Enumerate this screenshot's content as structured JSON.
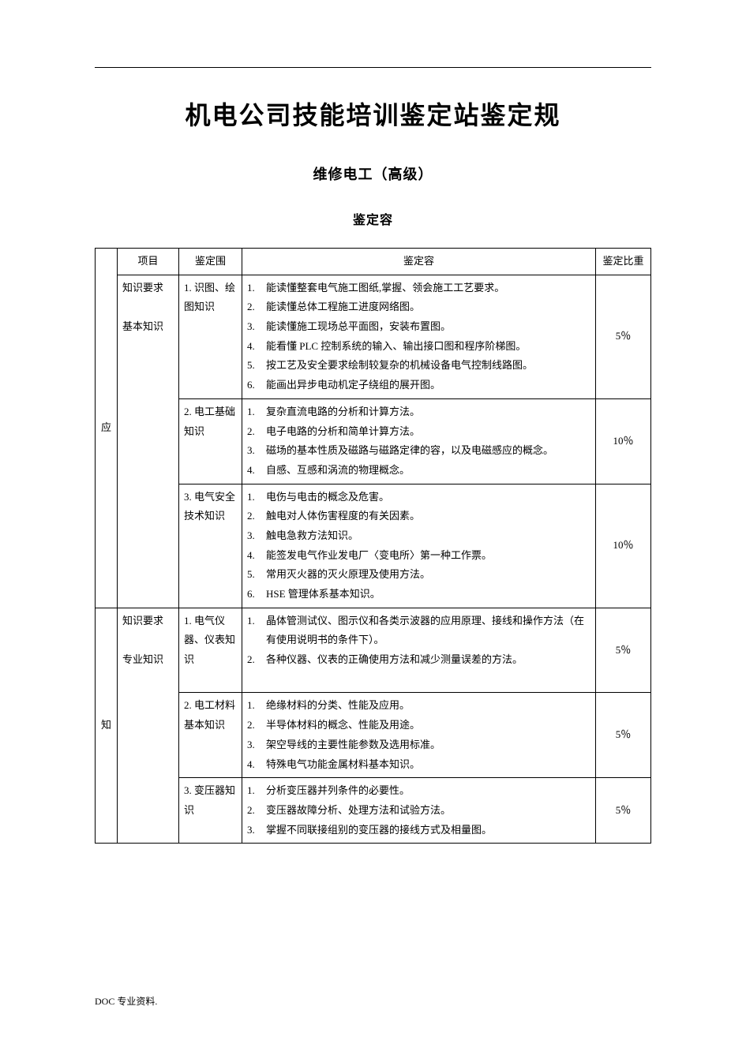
{
  "title": "机电公司技能培训鉴定站鉴定规",
  "subtitle": "维修电工（高级）",
  "section": "鉴定容",
  "footer": "DOC 专业资料.",
  "headers": {
    "side": "",
    "project": "项目",
    "scope": "鉴定围",
    "content": "鉴定容",
    "weight": "鉴定比重"
  },
  "side_labels": {
    "ying": "应",
    "zhi": "知"
  },
  "rows": [
    {
      "project": "知识要求\n\n基本知识",
      "scope": "1. 识图、绘图知识",
      "items": [
        "能读懂整套电气施工图纸,掌握、领会施工工艺要求。",
        "能读懂总体工程施工进度网络图。",
        "能读懂施工现场总平面图，安装布置图。",
        "能看懂 PLC 控制系统的输入、输出接口图和程序阶梯图。",
        "按工艺及安全要求绘制较复杂的机械设备电气控制线路图。",
        "能画出异步电动机定子绕组的展开图。"
      ],
      "weight": "5％"
    },
    {
      "project": "",
      "scope": "2. 电工基础知识",
      "items": [
        "复杂直流电路的分析和计算方法。",
        "电子电路的分析和简单计算方法。",
        "磁场的基本性质及磁路与磁路定律的容，以及电磁感应的概念。",
        "自感、互感和涡流的物理概念。"
      ],
      "weight": "10％"
    },
    {
      "project": "",
      "scope": "3. 电气安全技术知识",
      "items": [
        "电伤与电击的概念及危害。",
        "触电对人体伤害程度的有关因素。",
        "触电急救方法知识。",
        "能签发电气作业发电厂〈变电所〉第一种工作票。",
        "常用灭火器的灭火原理及使用方法。",
        "HSE 管理体系基本知识。"
      ],
      "weight": "10％"
    },
    {
      "project": "知识要求\n\n专业知识",
      "scope": "1. 电气仪器、仪表知识",
      "items": [
        "晶体管测试仪、图示仪和各类示波器的应用原理、接线和操作方法（在有使用说明书的条件下）。",
        "各种仪器、仪表的正确使用方法和减少测量误差的方法。"
      ],
      "weight": "5％",
      "extra_pad": true
    },
    {
      "project": "",
      "scope": "2. 电工材料基本知识",
      "items": [
        "绝缘材料的分类、性能及应用。",
        "半导体材料的概念、性能及用途。",
        "架空导线的主要性能参数及选用标准。",
        "特殊电气功能金属材料基本知识。"
      ],
      "weight": "5％"
    },
    {
      "project": "",
      "scope": "3. 变压器知识",
      "items": [
        "分析变压器并列条件的必要性。",
        "变压器故障分析、处理方法和试验方法。",
        "掌握不同联接组别的变压器的接线方式及相量图。"
      ],
      "weight": "5％"
    }
  ]
}
